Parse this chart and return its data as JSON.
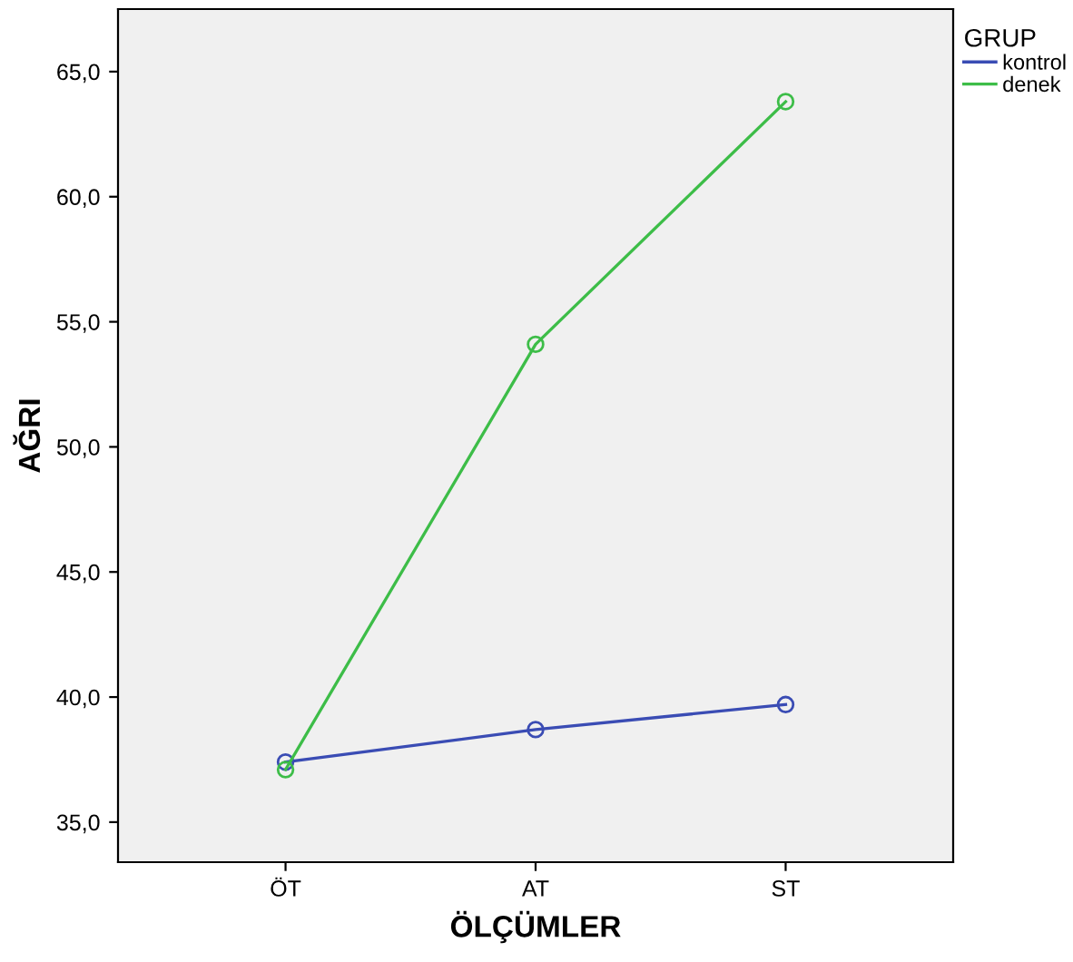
{
  "chart_data": {
    "type": "line",
    "xlabel": "ÖLÇÜMLER",
    "ylabel": "AĞRI",
    "legend_title": "GRUP",
    "categories": [
      "ÖT",
      "AT",
      "ST"
    ],
    "series": [
      {
        "name": "kontrol",
        "color": "#3a4cb4",
        "values": [
          37.4,
          38.7,
          39.7
        ]
      },
      {
        "name": "denek",
        "color": "#3dbd48",
        "values": [
          37.1,
          54.1,
          63.8
        ]
      }
    ],
    "ylim": [
      33.4,
      67.5
    ],
    "yticks": [
      {
        "value": 35,
        "label": "35,0"
      },
      {
        "value": 40,
        "label": "40,0"
      },
      {
        "value": 45,
        "label": "45,0"
      },
      {
        "value": 50,
        "label": "50,0"
      },
      {
        "value": 55,
        "label": "55,0"
      },
      {
        "value": 60,
        "label": "60,0"
      },
      {
        "value": 65,
        "label": "65,0"
      }
    ],
    "marker": "circle",
    "line_style": "solid",
    "grid": false,
    "legend": "right"
  }
}
